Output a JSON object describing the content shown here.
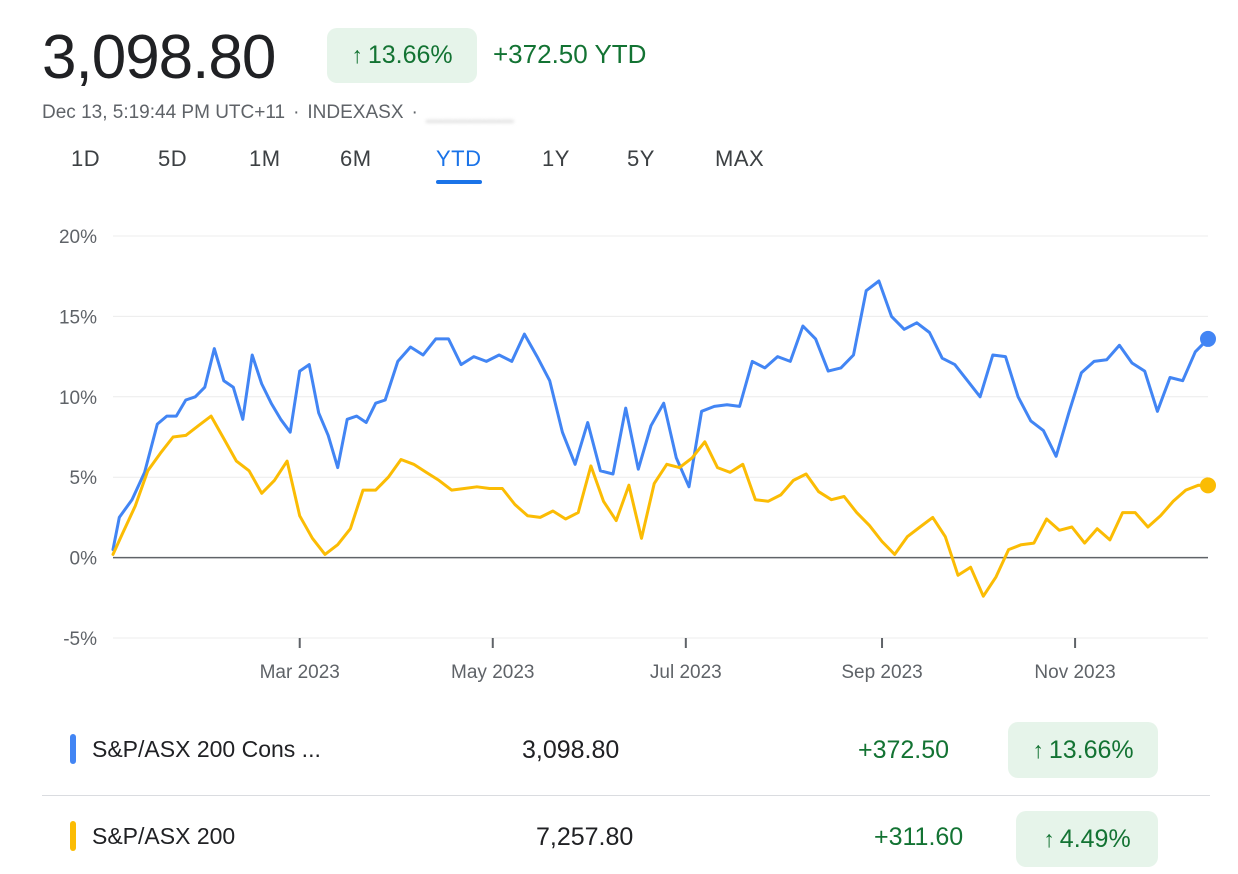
{
  "header": {
    "price": "3,098.80",
    "change_percent": "13.66%",
    "ytd_change": "+372.50 YTD",
    "timestamp": "Dec 13, 5:19:44 PM UTC+11",
    "exchange": "INDEXASX",
    "separator": "·",
    "arrow": "↑"
  },
  "tabs": [
    {
      "label": "1D"
    },
    {
      "label": "5D"
    },
    {
      "label": "1M"
    },
    {
      "label": "6M"
    },
    {
      "label": "YTD",
      "active": true
    },
    {
      "label": "1Y"
    },
    {
      "label": "5Y"
    },
    {
      "label": "MAX"
    }
  ],
  "colors": {
    "blue": "#4285f4",
    "yellow": "#fbbc04",
    "positive": "#137333",
    "positive_bg": "#e6f4ea",
    "active_tab": "#1a73e8"
  },
  "chart_data": {
    "type": "line",
    "x_unit": "week of 2023",
    "xlim": [
      "2023-01-01",
      "2023-12-13"
    ],
    "ylim": [
      -5,
      20
    ],
    "y_ticks": [
      {
        "value": 20,
        "label": "20%"
      },
      {
        "value": 15,
        "label": "15%"
      },
      {
        "value": 10,
        "label": "10%"
      },
      {
        "value": 5,
        "label": "5%"
      },
      {
        "value": 0,
        "label": "0%"
      },
      {
        "value": -5,
        "label": "-5%"
      }
    ],
    "x_ticks": [
      {
        "date": "2023-03-01",
        "label": "Mar 2023"
      },
      {
        "date": "2023-05-01",
        "label": "May 2023"
      },
      {
        "date": "2023-07-01",
        "label": "Jul 2023"
      },
      {
        "date": "2023-09-01",
        "label": "Sep 2023"
      },
      {
        "date": "2023-11-01",
        "label": "Nov 2023"
      }
    ],
    "grid": true,
    "series": [
      {
        "name": "S&P/ASX 200 Cons ...",
        "color": "#4285f4",
        "x": [
          "2023-01-01",
          "2023-01-03",
          "2023-01-07",
          "2023-01-11",
          "2023-01-15",
          "2023-01-18",
          "2023-01-21",
          "2023-01-24",
          "2023-01-27",
          "2023-01-30",
          "2023-02-02",
          "2023-02-05",
          "2023-02-08",
          "2023-02-11",
          "2023-02-14",
          "2023-02-17",
          "2023-02-20",
          "2023-02-23",
          "2023-02-26",
          "2023-03-01",
          "2023-03-04",
          "2023-03-07",
          "2023-03-10",
          "2023-03-13",
          "2023-03-16",
          "2023-03-19",
          "2023-03-22",
          "2023-03-25",
          "2023-03-28",
          "2023-04-01",
          "2023-04-05",
          "2023-04-09",
          "2023-04-13",
          "2023-04-17",
          "2023-04-21",
          "2023-04-25",
          "2023-04-29",
          "2023-05-03",
          "2023-05-07",
          "2023-05-11",
          "2023-05-15",
          "2023-05-19",
          "2023-05-23",
          "2023-05-27",
          "2023-05-31",
          "2023-06-04",
          "2023-06-08",
          "2023-06-12",
          "2023-06-16",
          "2023-06-20",
          "2023-06-24",
          "2023-06-28",
          "2023-07-02",
          "2023-07-06",
          "2023-07-10",
          "2023-07-14",
          "2023-07-18",
          "2023-07-22",
          "2023-07-26",
          "2023-07-30",
          "2023-08-03",
          "2023-08-07",
          "2023-08-11",
          "2023-08-15",
          "2023-08-19",
          "2023-08-23",
          "2023-08-27",
          "2023-08-31",
          "2023-09-04",
          "2023-09-08",
          "2023-09-12",
          "2023-09-16",
          "2023-09-20",
          "2023-09-24",
          "2023-09-28",
          "2023-10-02",
          "2023-10-06",
          "2023-10-10",
          "2023-10-14",
          "2023-10-18",
          "2023-10-22",
          "2023-10-26",
          "2023-10-30",
          "2023-11-03",
          "2023-11-07",
          "2023-11-11",
          "2023-11-15",
          "2023-11-19",
          "2023-11-23",
          "2023-11-27",
          "2023-12-01",
          "2023-12-05",
          "2023-12-09",
          "2023-12-13"
        ],
        "y": [
          0.5,
          2.5,
          3.6,
          5.3,
          8.3,
          8.8,
          8.8,
          9.8,
          10.0,
          10.6,
          13.0,
          11.0,
          10.6,
          8.6,
          12.6,
          10.8,
          9.6,
          8.6,
          7.8,
          11.6,
          12.0,
          9.0,
          7.6,
          5.6,
          8.6,
          8.8,
          8.4,
          9.6,
          9.8,
          12.2,
          13.1,
          12.6,
          13.6,
          13.6,
          12.0,
          12.5,
          12.2,
          12.6,
          12.2,
          13.9,
          12.5,
          11.0,
          7.8,
          5.8,
          8.4,
          5.4,
          5.2,
          9.3,
          5.5,
          8.2,
          9.6,
          6.2,
          4.4,
          9.1,
          9.4,
          9.5,
          9.4,
          12.2,
          11.8,
          12.5,
          12.2,
          14.4,
          13.6,
          11.6,
          11.8,
          12.6,
          16.6,
          17.2,
          15.0,
          14.2,
          14.6,
          14.0,
          12.4,
          12.0,
          11.0,
          10.0,
          12.6,
          12.5,
          10.0,
          8.5,
          7.9,
          6.3,
          9.0,
          11.5,
          12.2,
          12.3,
          13.2,
          12.1,
          11.6,
          9.1,
          11.2,
          11.0,
          12.8,
          13.6
        ]
      },
      {
        "name": "S&P/ASX 200",
        "color": "#fbbc04",
        "x": [
          "2023-01-01",
          "2023-01-04",
          "2023-01-08",
          "2023-01-12",
          "2023-01-16",
          "2023-01-20",
          "2023-01-24",
          "2023-01-28",
          "2023-02-01",
          "2023-02-05",
          "2023-02-09",
          "2023-02-13",
          "2023-02-17",
          "2023-02-21",
          "2023-02-25",
          "2023-03-01",
          "2023-03-05",
          "2023-03-09",
          "2023-03-13",
          "2023-03-17",
          "2023-03-21",
          "2023-03-25",
          "2023-03-29",
          "2023-04-02",
          "2023-04-06",
          "2023-04-10",
          "2023-04-14",
          "2023-04-18",
          "2023-04-22",
          "2023-04-26",
          "2023-04-30",
          "2023-05-04",
          "2023-05-08",
          "2023-05-12",
          "2023-05-16",
          "2023-05-20",
          "2023-05-24",
          "2023-05-28",
          "2023-06-01",
          "2023-06-05",
          "2023-06-09",
          "2023-06-13",
          "2023-06-17",
          "2023-06-21",
          "2023-06-25",
          "2023-06-29",
          "2023-07-03",
          "2023-07-07",
          "2023-07-11",
          "2023-07-15",
          "2023-07-19",
          "2023-07-23",
          "2023-07-27",
          "2023-07-31",
          "2023-08-04",
          "2023-08-08",
          "2023-08-12",
          "2023-08-16",
          "2023-08-20",
          "2023-08-24",
          "2023-08-28",
          "2023-09-01",
          "2023-09-05",
          "2023-09-09",
          "2023-09-13",
          "2023-09-17",
          "2023-09-21",
          "2023-09-25",
          "2023-09-29",
          "2023-10-03",
          "2023-10-07",
          "2023-10-11",
          "2023-10-15",
          "2023-10-19",
          "2023-10-23",
          "2023-10-27",
          "2023-10-31",
          "2023-11-04",
          "2023-11-08",
          "2023-11-12",
          "2023-11-16",
          "2023-11-20",
          "2023-11-24",
          "2023-11-28",
          "2023-12-02",
          "2023-12-06",
          "2023-12-10",
          "2023-12-13"
        ],
        "y": [
          0.2,
          1.5,
          3.2,
          5.4,
          6.5,
          7.5,
          7.6,
          8.2,
          8.8,
          7.4,
          6.0,
          5.4,
          4.0,
          4.8,
          6.0,
          2.6,
          1.2,
          0.2,
          0.8,
          1.8,
          4.2,
          4.2,
          5.0,
          6.1,
          5.8,
          5.3,
          4.8,
          4.2,
          4.3,
          4.4,
          4.3,
          4.3,
          3.3,
          2.6,
          2.5,
          2.9,
          2.4,
          2.8,
          5.7,
          3.5,
          2.3,
          4.5,
          1.2,
          4.6,
          5.8,
          5.6,
          6.2,
          7.2,
          5.6,
          5.3,
          5.8,
          3.6,
          3.5,
          3.9,
          4.8,
          5.2,
          4.1,
          3.6,
          3.8,
          2.8,
          2.0,
          1.0,
          0.2,
          1.3,
          1.9,
          2.5,
          1.3,
          -1.1,
          -0.6,
          -2.4,
          -1.2,
          0.5,
          0.8,
          0.9,
          2.4,
          1.7,
          1.9,
          0.9,
          1.8,
          1.1,
          2.8,
          2.8,
          1.9,
          2.6,
          3.5,
          4.2,
          4.5,
          4.49
        ]
      }
    ]
  },
  "legend": [
    {
      "name": "S&P/ASX 200 Cons ...",
      "value": "3,098.80",
      "change": "+372.50",
      "percent": "13.66%",
      "color": "#4285f4"
    },
    {
      "name": "S&P/ASX 200",
      "value": "7,257.80",
      "change": "+311.60",
      "percent": "4.49%",
      "color": "#fbbc04"
    }
  ]
}
